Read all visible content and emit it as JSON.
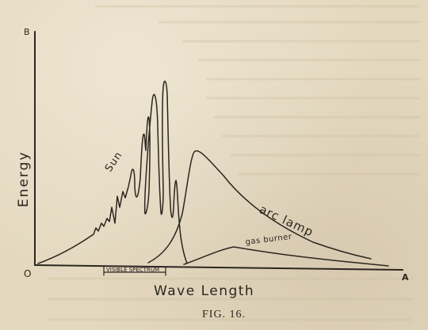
{
  "figure": {
    "caption": "FIG. 16.",
    "axis": {
      "y_label": "Energy",
      "x_label": "Wave Length",
      "y_end_label": "B",
      "x_end_label": "A",
      "origin_label": "O"
    },
    "visible_spectrum_label": "VISIBLE SPECTRUM",
    "curve_labels": {
      "sun": "Sun",
      "arc_lamp": "arc lamp",
      "gas_burner": "gas burner"
    }
  }
}
